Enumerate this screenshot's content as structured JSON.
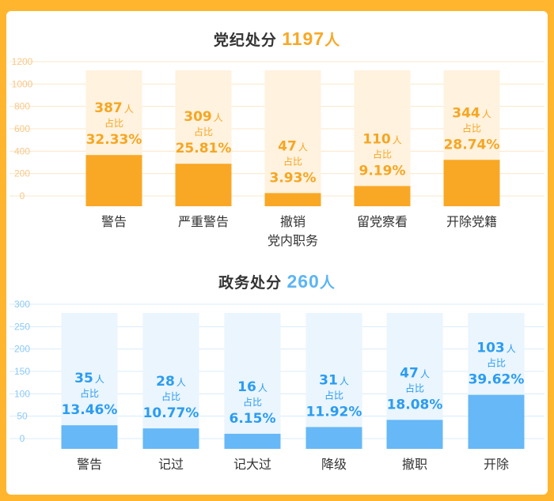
{
  "chart1": {
    "title_prefix": "党纪处分",
    "total": "1197",
    "unit": "人",
    "color": "#f9a825"
  },
  "chart2": {
    "title_prefix": "政务处分",
    "total": "260",
    "unit": "人",
    "color": "#5bb5f5"
  },
  "ratio_label": "占比",
  "colors": {
    "orange_bar": "#f9a825",
    "orange_bg": "#fff2de",
    "orange_text": "#f5a623",
    "blue_bar": "#66b8f7",
    "blue_bg": "#eaf5fe",
    "blue_text": "#2b9cf0",
    "border": "#ffb52e"
  },
  "chart_data": [
    {
      "type": "bar",
      "title": "党纪处分 1197人",
      "categories": [
        [
          "警告"
        ],
        [
          "严重警告"
        ],
        [
          "撤销",
          "党内职务"
        ],
        [
          "留党察看"
        ],
        [
          "开除党籍"
        ]
      ],
      "values": [
        387,
        309,
        47,
        110,
        344
      ],
      "value_labels": [
        "387",
        "309",
        "47",
        "110",
        "344"
      ],
      "percent_labels": [
        "32.33%",
        "25.81%",
        "3.93%",
        "9.19%",
        "28.74%"
      ],
      "yticks": [
        "0",
        "200",
        "400",
        "600",
        "800",
        "1000",
        "1200"
      ],
      "ylim": [
        0,
        1200
      ],
      "grid": true
    },
    {
      "type": "bar",
      "title": "政务处分 260人",
      "categories": [
        [
          "警告"
        ],
        [
          "记过"
        ],
        [
          "记大过"
        ],
        [
          "降级"
        ],
        [
          "撤职"
        ],
        [
          "开除"
        ]
      ],
      "values": [
        35,
        28,
        16,
        31,
        47,
        103
      ],
      "value_labels": [
        "35",
        "28",
        "16",
        "31",
        "47",
        "103"
      ],
      "percent_labels": [
        "13.46%",
        "10.77%",
        "6.15%",
        "11.92%",
        "18.08%",
        "39.62%"
      ],
      "yticks": [
        "0",
        "50",
        "100",
        "150",
        "200",
        "250",
        "300"
      ],
      "ylim": [
        0,
        300
      ],
      "grid": true
    }
  ]
}
